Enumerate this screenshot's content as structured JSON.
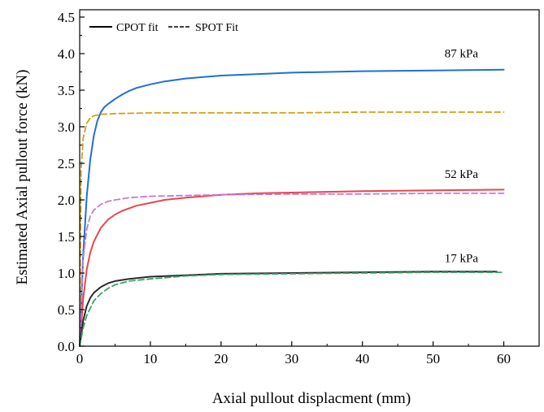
{
  "chart_data": {
    "type": "line",
    "title": "",
    "xlabel": "Axial pullout displacment (mm)",
    "ylabel": "Estimated Axial pullout force (kN)",
    "xlim": [
      0,
      65
    ],
    "ylim": [
      0,
      4.6
    ],
    "x_ticks": [
      0,
      10,
      20,
      30,
      40,
      50,
      60
    ],
    "y_ticks": [
      0.0,
      0.5,
      1.0,
      1.5,
      2.0,
      2.5,
      3.0,
      3.5,
      4.0,
      4.5
    ],
    "grid": false,
    "legend": {
      "placement": "top-left",
      "entries": [
        {
          "label": "CPOT fit",
          "style": "solid",
          "color": "#000000"
        },
        {
          "label": "SPOT Fit",
          "style": "dashed",
          "color": "#000000"
        }
      ]
    },
    "annotations": [
      {
        "text": "87 kPa",
        "x": 54,
        "y": 3.95
      },
      {
        "text": "52 kPa",
        "x": 54,
        "y": 2.3
      },
      {
        "text": "17 kPa",
        "x": 54,
        "y": 1.15
      }
    ],
    "series": [
      {
        "style": "solid",
        "color": "#1f6fd6",
        "x": [
          0,
          0.5,
          1,
          1.5,
          2,
          2.5,
          3,
          3.5,
          4,
          5,
          6,
          7,
          8,
          10,
          12,
          15,
          20,
          25,
          30,
          40,
          50,
          60
        ],
        "y": [
          0,
          1.25,
          2.05,
          2.55,
          2.88,
          3.08,
          3.2,
          3.27,
          3.31,
          3.38,
          3.44,
          3.49,
          3.53,
          3.58,
          3.62,
          3.66,
          3.7,
          3.72,
          3.74,
          3.76,
          3.77,
          3.78
        ]
      },
      {
        "style": "dashed",
        "color": "#d4a017",
        "x": [
          0,
          0.2,
          0.5,
          1,
          1.5,
          2,
          3,
          5,
          10,
          20,
          30,
          40,
          50,
          60
        ],
        "y": [
          0,
          2.4,
          2.85,
          3.05,
          3.12,
          3.15,
          3.17,
          3.18,
          3.19,
          3.19,
          3.19,
          3.2,
          3.2,
          3.2
        ]
      },
      {
        "style": "solid",
        "color": "#e8474c",
        "x": [
          0,
          0.5,
          1,
          1.5,
          2,
          3,
          4,
          5,
          6,
          8,
          10,
          12,
          15,
          20,
          25,
          30,
          40,
          50,
          60
        ],
        "y": [
          0,
          0.65,
          1.05,
          1.28,
          1.43,
          1.62,
          1.73,
          1.8,
          1.85,
          1.92,
          1.96,
          2.0,
          2.03,
          2.07,
          2.09,
          2.1,
          2.12,
          2.13,
          2.14
        ]
      },
      {
        "style": "dashed",
        "color": "#c678dd",
        "x": [
          0,
          0.5,
          1,
          1.5,
          2,
          3,
          4,
          5,
          7,
          10,
          15,
          20,
          30,
          40,
          50,
          60
        ],
        "y": [
          0,
          1.2,
          1.6,
          1.78,
          1.86,
          1.94,
          1.98,
          2.0,
          2.03,
          2.05,
          2.06,
          2.07,
          2.08,
          2.08,
          2.09,
          2.09
        ]
      },
      {
        "style": "solid",
        "color": "#2b2b2b",
        "x": [
          0,
          0.5,
          1,
          1.5,
          2,
          3,
          4,
          5,
          7,
          10,
          15,
          20,
          30,
          40,
          50,
          59
        ],
        "y": [
          0,
          0.35,
          0.55,
          0.66,
          0.73,
          0.81,
          0.86,
          0.89,
          0.92,
          0.95,
          0.97,
          0.99,
          1.0,
          1.01,
          1.02,
          1.02
        ]
      },
      {
        "style": "dashed",
        "color": "#3aa36a",
        "x": [
          0,
          0.5,
          1,
          2,
          3,
          4,
          5,
          7,
          10,
          15,
          20,
          30,
          40,
          50,
          60
        ],
        "y": [
          0,
          0.25,
          0.42,
          0.62,
          0.72,
          0.79,
          0.84,
          0.89,
          0.92,
          0.96,
          0.98,
          0.99,
          1.0,
          1.01,
          1.01
        ]
      }
    ]
  }
}
